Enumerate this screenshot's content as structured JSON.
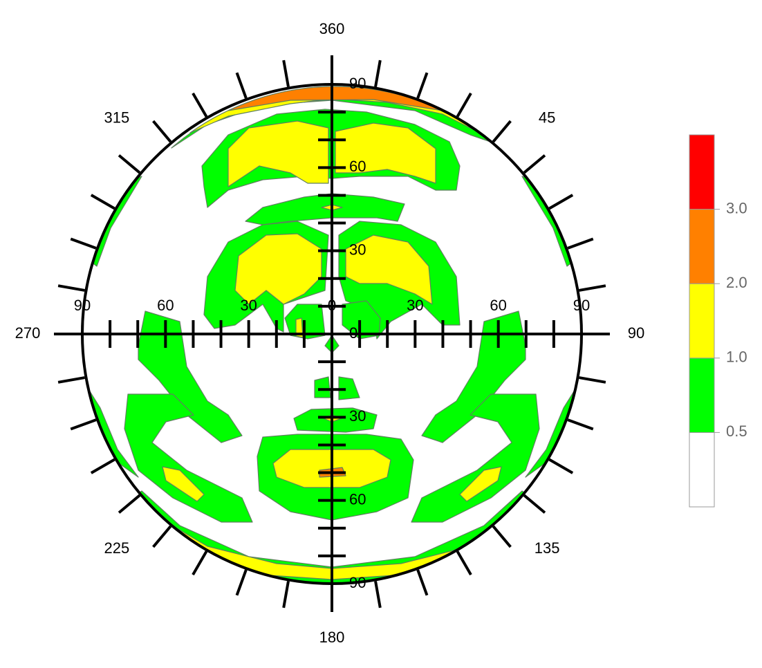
{
  "chart_data": {
    "type": "pole-figure",
    "azimuth_labels": [
      360,
      45,
      90,
      135,
      180,
      225,
      270,
      315
    ],
    "azimuth_ticks": [
      10,
      20,
      30,
      40,
      50,
      60,
      70,
      80,
      100,
      110,
      120,
      130,
      140,
      150,
      160,
      170,
      190,
      200,
      210,
      220,
      230,
      240,
      250,
      260,
      280,
      290,
      300,
      310,
      320,
      330,
      340,
      350
    ],
    "radial_lim": [
      0,
      90
    ],
    "radial_labels": [
      0,
      30,
      60,
      90
    ],
    "radial_ticks": [
      10,
      20,
      30,
      40,
      50,
      60,
      70,
      80
    ],
    "colorbar": {
      "ticks": [
        0.5,
        {
          "value": 1,
          "label": "1.0"
        },
        {
          "value": 2,
          "label": "2.0"
        },
        {
          "value": 3,
          "label": "3.0"
        }
      ],
      "colors": [
        "#ffffff",
        "#00ff00",
        "#ffff00",
        "#ff8000",
        "#ff0000"
      ]
    }
  }
}
